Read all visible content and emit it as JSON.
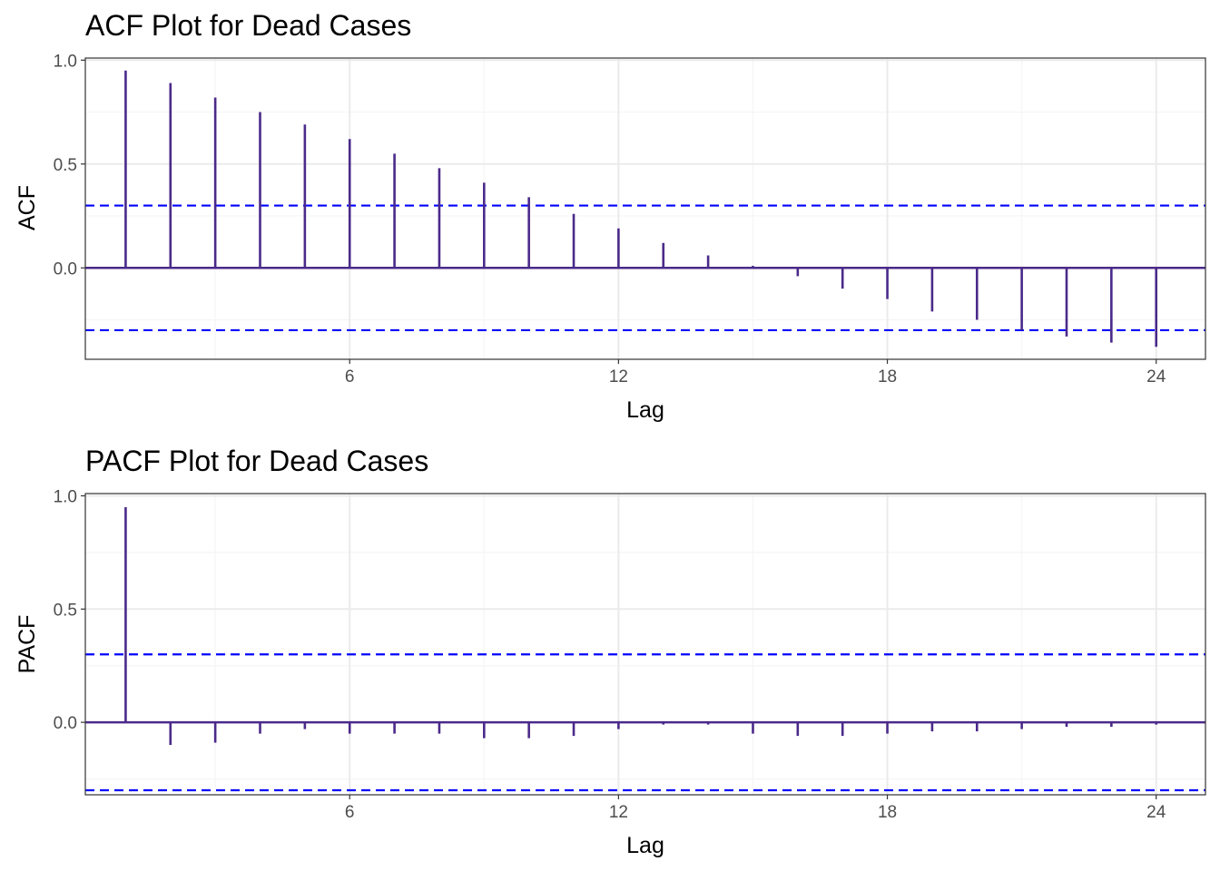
{
  "chart_data": [
    {
      "type": "bar",
      "title": "ACF Plot for Dead Cases",
      "xlabel": "Lag",
      "ylabel": "ACF",
      "xlim": [
        0.1,
        25.1
      ],
      "ylim": [
        -0.44,
        1.01
      ],
      "x_ticks": [
        6,
        12,
        18,
        24
      ],
      "y_ticks": [
        0.0,
        0.5,
        1.0
      ],
      "y_tick_labels": [
        "0.0",
        "0.5",
        "1.0"
      ],
      "confidence_limits": [
        0.3,
        -0.3
      ],
      "lags": [
        1,
        2,
        3,
        4,
        5,
        6,
        7,
        8,
        9,
        10,
        11,
        12,
        13,
        14,
        15,
        16,
        17,
        18,
        19,
        20,
        21,
        22,
        23,
        24
      ],
      "values": [
        0.95,
        0.89,
        0.82,
        0.75,
        0.69,
        0.62,
        0.55,
        0.48,
        0.41,
        0.34,
        0.26,
        0.19,
        0.12,
        0.06,
        0.01,
        -0.04,
        -0.1,
        -0.15,
        -0.21,
        -0.25,
        -0.3,
        -0.33,
        -0.36,
        -0.38
      ]
    },
    {
      "type": "bar",
      "title": "PACF Plot for Dead Cases",
      "xlabel": "Lag",
      "ylabel": "PACF",
      "xlim": [
        0.1,
        25.1
      ],
      "ylim": [
        -0.32,
        1.01
      ],
      "x_ticks": [
        6,
        12,
        18,
        24
      ],
      "y_ticks": [
        0.0,
        0.5,
        1.0
      ],
      "y_tick_labels": [
        "0.0",
        "0.5",
        "1.0"
      ],
      "confidence_limits": [
        0.3,
        -0.3
      ],
      "lags": [
        1,
        2,
        3,
        4,
        5,
        6,
        7,
        8,
        9,
        10,
        11,
        12,
        13,
        14,
        15,
        16,
        17,
        18,
        19,
        20,
        21,
        22,
        23,
        24
      ],
      "values": [
        0.95,
        -0.1,
        -0.09,
        -0.05,
        -0.03,
        -0.05,
        -0.05,
        -0.05,
        -0.07,
        -0.07,
        -0.06,
        -0.03,
        -0.01,
        -0.01,
        -0.05,
        -0.06,
        -0.06,
        -0.05,
        -0.04,
        -0.04,
        -0.03,
        -0.02,
        -0.02,
        -0.01
      ]
    }
  ]
}
